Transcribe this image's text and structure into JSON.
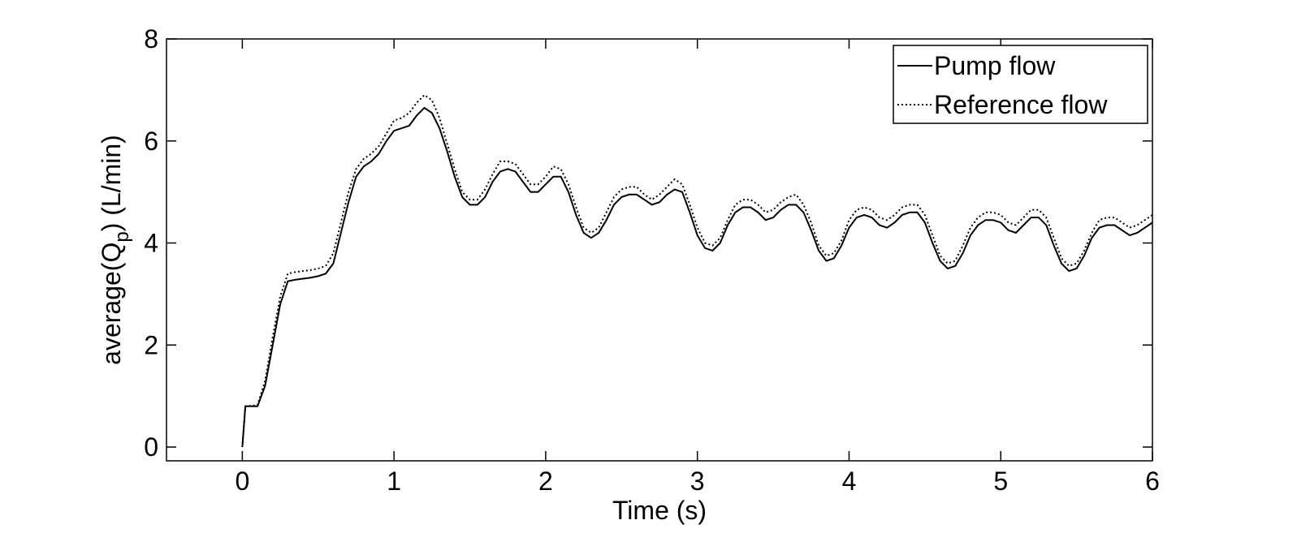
{
  "chart_data": {
    "type": "line",
    "xlabel": "Time (s)",
    "ylabel": {
      "before": "average(Q",
      "sub": "p",
      "after": ") (L/min)"
    },
    "xlim": [
      -0.5,
      6
    ],
    "xticks": [
      0,
      1,
      2,
      3,
      4,
      5,
      6
    ],
    "ylim": [
      -0.27,
      8
    ],
    "yticks": [
      0,
      2,
      4,
      6,
      8
    ],
    "legend": "northeast",
    "x": [
      0,
      0.02,
      0.1,
      0.15,
      0.2,
      0.25,
      0.3,
      0.35,
      0.4,
      0.45,
      0.5,
      0.55,
      0.6,
      0.65,
      0.7,
      0.75,
      0.8,
      0.85,
      0.9,
      0.95,
      1.0,
      1.05,
      1.1,
      1.15,
      1.2,
      1.25,
      1.3,
      1.35,
      1.4,
      1.45,
      1.5,
      1.55,
      1.6,
      1.65,
      1.7,
      1.75,
      1.8,
      1.85,
      1.9,
      1.95,
      2.0,
      2.05,
      2.1,
      2.15,
      2.2,
      2.25,
      2.3,
      2.35,
      2.4,
      2.45,
      2.5,
      2.55,
      2.6,
      2.65,
      2.7,
      2.75,
      2.8,
      2.85,
      2.9,
      2.95,
      3.0,
      3.05,
      3.1,
      3.15,
      3.2,
      3.25,
      3.3,
      3.35,
      3.4,
      3.45,
      3.5,
      3.55,
      3.6,
      3.65,
      3.7,
      3.75,
      3.8,
      3.85,
      3.9,
      3.95,
      4.0,
      4.05,
      4.1,
      4.15,
      4.2,
      4.25,
      4.3,
      4.35,
      4.4,
      4.45,
      4.5,
      4.55,
      4.6,
      4.65,
      4.7,
      4.75,
      4.8,
      4.85,
      4.9,
      4.95,
      5.0,
      5.05,
      5.1,
      5.15,
      5.2,
      5.25,
      5.3,
      5.35,
      5.4,
      5.45,
      5.5,
      5.55,
      5.6,
      5.65,
      5.7,
      5.75,
      5.8,
      5.85,
      5.9,
      5.95,
      6.0
    ],
    "series": [
      {
        "name": "Pump flow",
        "color": "#000000",
        "style": "solid",
        "values": [
          0,
          0.8,
          0.8,
          1.2,
          2.0,
          2.8,
          3.25,
          3.28,
          3.3,
          3.32,
          3.35,
          3.4,
          3.6,
          4.2,
          4.8,
          5.3,
          5.5,
          5.6,
          5.75,
          6.0,
          6.2,
          6.25,
          6.3,
          6.5,
          6.65,
          6.55,
          6.25,
          5.8,
          5.3,
          4.9,
          4.75,
          4.75,
          4.9,
          5.2,
          5.4,
          5.45,
          5.4,
          5.2,
          5.0,
          5.0,
          5.15,
          5.3,
          5.3,
          5.0,
          4.55,
          4.2,
          4.1,
          4.2,
          4.45,
          4.75,
          4.9,
          4.95,
          4.95,
          4.85,
          4.75,
          4.8,
          4.95,
          5.05,
          5.0,
          4.6,
          4.15,
          3.9,
          3.85,
          4.0,
          4.35,
          4.6,
          4.7,
          4.7,
          4.6,
          4.45,
          4.5,
          4.65,
          4.75,
          4.75,
          4.6,
          4.25,
          3.85,
          3.65,
          3.7,
          3.95,
          4.3,
          4.5,
          4.55,
          4.5,
          4.35,
          4.3,
          4.4,
          4.55,
          4.6,
          4.6,
          4.4,
          4.0,
          3.65,
          3.5,
          3.55,
          3.8,
          4.15,
          4.35,
          4.45,
          4.45,
          4.4,
          4.25,
          4.2,
          4.35,
          4.5,
          4.5,
          4.35,
          3.95,
          3.6,
          3.45,
          3.5,
          3.75,
          4.1,
          4.3,
          4.35,
          4.35,
          4.25,
          4.15,
          4.2,
          4.3,
          4.4
        ]
      },
      {
        "name": "Reference flow",
        "color": "#000000",
        "style": "dotted",
        "values": [
          0,
          0.8,
          0.82,
          1.3,
          2.15,
          2.95,
          3.4,
          3.43,
          3.45,
          3.47,
          3.5,
          3.55,
          3.8,
          4.4,
          5.0,
          5.45,
          5.65,
          5.75,
          5.9,
          6.15,
          6.4,
          6.45,
          6.55,
          6.75,
          6.9,
          6.8,
          6.45,
          5.95,
          5.45,
          5.0,
          4.85,
          4.85,
          5.05,
          5.35,
          5.6,
          5.6,
          5.55,
          5.35,
          5.15,
          5.15,
          5.3,
          5.5,
          5.45,
          5.15,
          4.7,
          4.3,
          4.2,
          4.3,
          4.6,
          4.9,
          5.05,
          5.1,
          5.1,
          4.95,
          4.85,
          4.95,
          5.1,
          5.25,
          5.15,
          4.75,
          4.3,
          4.0,
          3.95,
          4.1,
          4.45,
          4.75,
          4.85,
          4.85,
          4.75,
          4.6,
          4.65,
          4.8,
          4.9,
          4.95,
          4.75,
          4.4,
          3.95,
          3.75,
          3.8,
          4.05,
          4.45,
          4.65,
          4.7,
          4.65,
          4.5,
          4.45,
          4.55,
          4.7,
          4.75,
          4.75,
          4.55,
          4.15,
          3.75,
          3.6,
          3.65,
          3.95,
          4.3,
          4.5,
          4.6,
          4.6,
          4.55,
          4.4,
          4.35,
          4.5,
          4.65,
          4.65,
          4.5,
          4.1,
          3.7,
          3.55,
          3.6,
          3.85,
          4.2,
          4.45,
          4.5,
          4.5,
          4.4,
          4.3,
          4.35,
          4.45,
          4.55
        ]
      }
    ]
  }
}
